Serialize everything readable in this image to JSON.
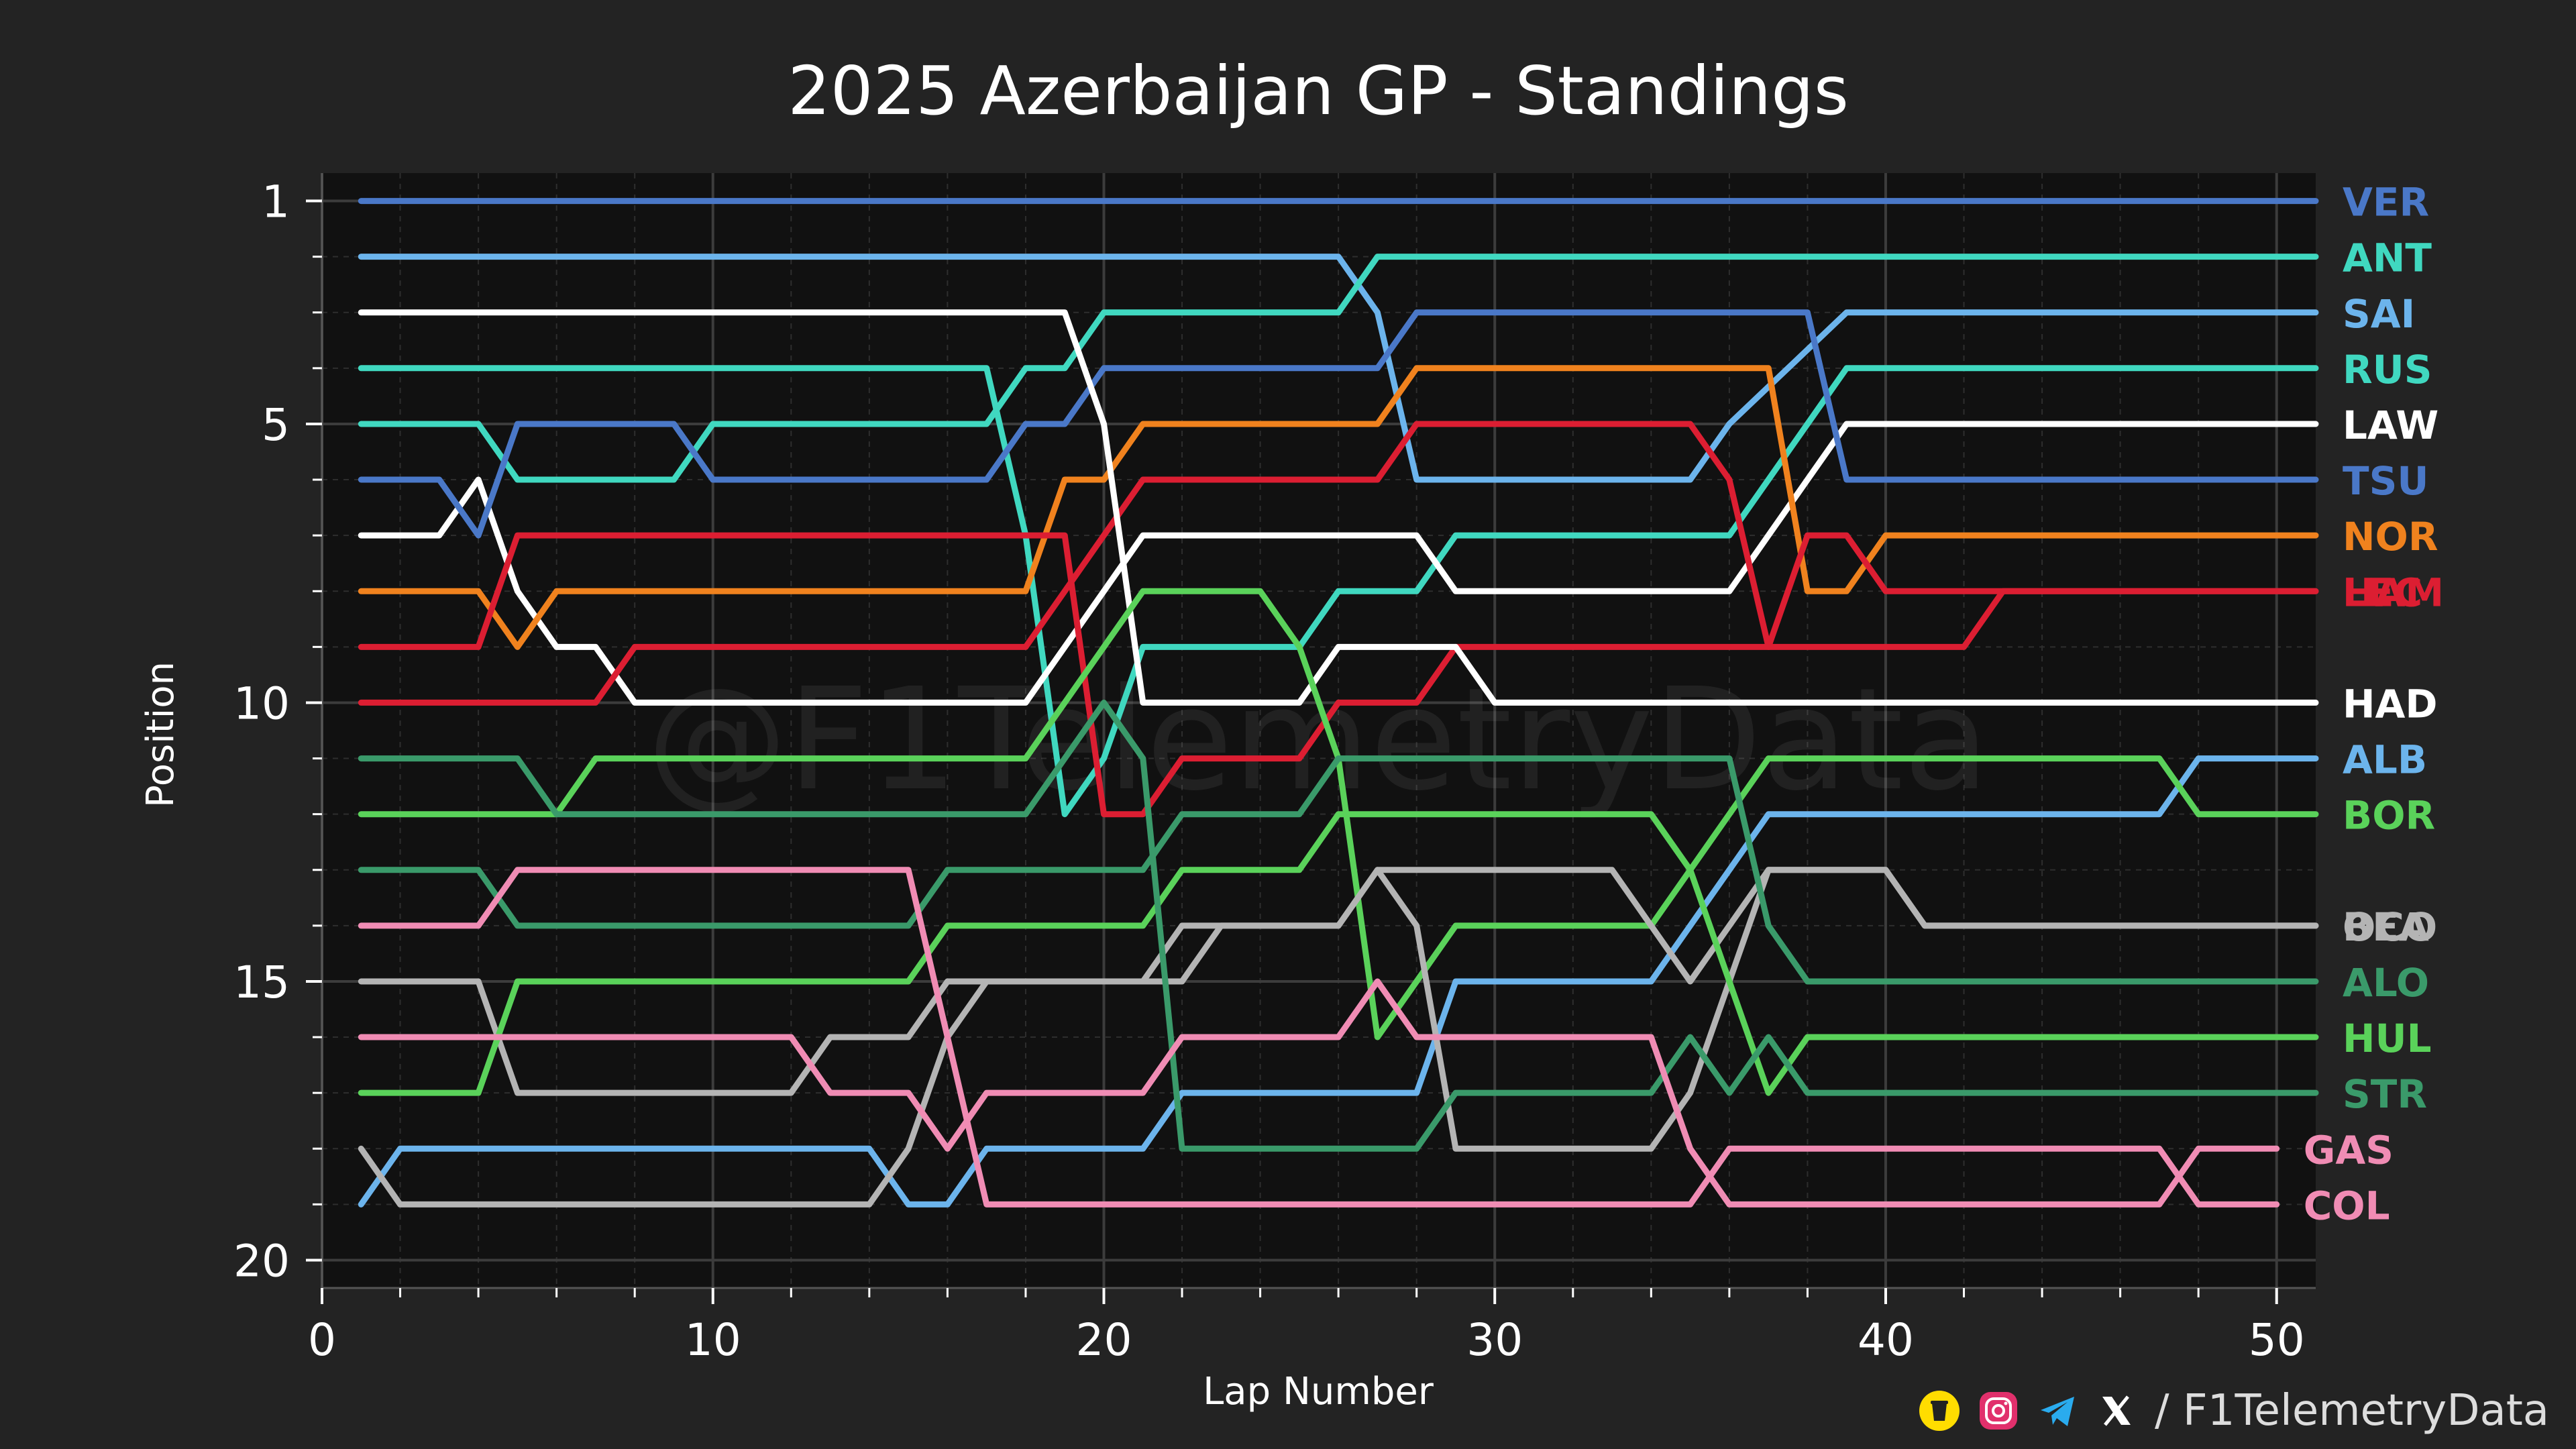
{
  "chart_data": {
    "type": "line",
    "title": "2025 Azerbaijan GP - Standings",
    "xlabel": "Lap Number",
    "ylabel": "Position",
    "xlim": [
      0,
      51
    ],
    "ylim": [
      20.5,
      0.5
    ],
    "xticks": [
      0,
      10,
      20,
      30,
      40,
      50
    ],
    "yticks": [
      1,
      5,
      10,
      15,
      20
    ],
    "grid": true,
    "legend": "right-end labels",
    "watermark": "@F1TelemetryData",
    "series": [
      {
        "name": "VER",
        "color": "#4a78c8",
        "points": [
          [
            1,
            1
          ],
          [
            51,
            1
          ]
        ]
      },
      {
        "name": "RUS",
        "color": "#40d8c0",
        "points": [
          [
            1,
            4
          ],
          [
            17,
            4
          ],
          [
            18,
            7
          ],
          [
            19,
            12
          ],
          [
            20,
            11
          ],
          [
            21,
            9
          ],
          [
            25,
            9
          ],
          [
            26,
            8
          ],
          [
            28,
            8
          ],
          [
            29,
            7
          ],
          [
            36,
            7
          ],
          [
            37,
            6
          ],
          [
            38,
            5
          ],
          [
            39,
            4
          ],
          [
            51,
            4
          ]
        ]
      },
      {
        "name": "SAI",
        "color": "#6cb4ec",
        "points": [
          [
            1,
            2
          ],
          [
            26,
            2
          ],
          [
            27,
            3
          ],
          [
            28,
            6
          ],
          [
            35,
            6
          ],
          [
            36,
            5
          ],
          [
            39,
            3
          ],
          [
            51,
            3
          ]
        ]
      },
      {
        "name": "ANT",
        "color": "#40d8c0",
        "points": [
          [
            1,
            5
          ],
          [
            4,
            5
          ],
          [
            5,
            6
          ],
          [
            9,
            6
          ],
          [
            10,
            5
          ],
          [
            17,
            5
          ],
          [
            18,
            4
          ],
          [
            19,
            4
          ],
          [
            20,
            3
          ],
          [
            26,
            3
          ],
          [
            27,
            2
          ],
          [
            51,
            2
          ]
        ]
      },
      {
        "name": "LAW",
        "color": "#ffffff",
        "points": [
          [
            1,
            7
          ],
          [
            3,
            7
          ],
          [
            4,
            6
          ],
          [
            5,
            8
          ],
          [
            6,
            9
          ],
          [
            7,
            9
          ],
          [
            8,
            10
          ],
          [
            18,
            10
          ],
          [
            19,
            9
          ],
          [
            20,
            8
          ],
          [
            21,
            7
          ],
          [
            27,
            7
          ],
          [
            28,
            7
          ],
          [
            29,
            8
          ],
          [
            36,
            8
          ],
          [
            37,
            7
          ],
          [
            38,
            6
          ],
          [
            39,
            5
          ],
          [
            51,
            5
          ]
        ]
      },
      {
        "name": "TSU",
        "color": "#4a78c8",
        "points": [
          [
            1,
            6
          ],
          [
            3,
            6
          ],
          [
            4,
            7
          ],
          [
            5,
            5
          ],
          [
            9,
            5
          ],
          [
            10,
            6
          ],
          [
            17,
            6
          ],
          [
            18,
            5
          ],
          [
            19,
            5
          ],
          [
            20,
            4
          ],
          [
            27,
            4
          ],
          [
            28,
            3
          ],
          [
            38,
            3
          ],
          [
            39,
            6
          ],
          [
            51,
            6
          ]
        ]
      },
      {
        "name": "NOR",
        "color": "#f0821e",
        "points": [
          [
            1,
            8
          ],
          [
            4,
            8
          ],
          [
            5,
            9
          ],
          [
            6,
            8
          ],
          [
            18,
            8
          ],
          [
            19,
            6
          ],
          [
            20,
            6
          ],
          [
            21,
            5
          ],
          [
            27,
            5
          ],
          [
            28,
            4
          ],
          [
            37,
            4
          ],
          [
            38,
            8
          ],
          [
            39,
            8
          ],
          [
            40,
            7
          ],
          [
            51,
            7
          ]
        ]
      },
      {
        "name": "HAM",
        "color": "#dc1e32",
        "points": [
          [
            1,
            9
          ],
          [
            4,
            9
          ],
          [
            5,
            7
          ],
          [
            19,
            7
          ],
          [
            20,
            12
          ],
          [
            21,
            12
          ],
          [
            22,
            11
          ],
          [
            25,
            11
          ],
          [
            26,
            10
          ],
          [
            28,
            10
          ],
          [
            29,
            9
          ],
          [
            36,
            9
          ],
          [
            37,
            9
          ],
          [
            38,
            7
          ],
          [
            39,
            7
          ],
          [
            40,
            8
          ],
          [
            51,
            8
          ]
        ]
      },
      {
        "name": "LEC",
        "color": "#dc1e32",
        "points": [
          [
            1,
            10
          ],
          [
            7,
            10
          ],
          [
            8,
            9
          ],
          [
            18,
            9
          ],
          [
            19,
            8
          ],
          [
            20,
            7
          ],
          [
            21,
            6
          ],
          [
            27,
            6
          ],
          [
            28,
            5
          ],
          [
            35,
            5
          ],
          [
            36,
            6
          ],
          [
            37,
            9
          ],
          [
            42,
            9
          ],
          [
            43,
            8
          ],
          [
            51,
            8
          ]
        ]
      },
      {
        "name": "HAD",
        "color": "#ffffff",
        "points": [
          [
            1,
            3
          ],
          [
            19,
            3
          ],
          [
            20,
            5
          ],
          [
            21,
            10
          ],
          [
            25,
            10
          ],
          [
            26,
            9
          ],
          [
            29,
            9
          ],
          [
            30,
            10
          ],
          [
            51,
            10
          ]
        ]
      },
      {
        "name": "ALB",
        "color": "#6cb4ec",
        "points": [
          [
            1,
            19
          ],
          [
            2,
            18
          ],
          [
            14,
            18
          ],
          [
            15,
            19
          ],
          [
            16,
            19
          ],
          [
            17,
            18
          ],
          [
            21,
            18
          ],
          [
            22,
            17
          ],
          [
            28,
            17
          ],
          [
            29,
            15
          ],
          [
            34,
            15
          ],
          [
            35,
            14
          ],
          [
            37,
            12
          ],
          [
            47,
            12
          ],
          [
            48,
            11
          ],
          [
            51,
            11
          ]
        ]
      },
      {
        "name": "BOR",
        "color": "#5ad25a",
        "points": [
          [
            1,
            12
          ],
          [
            6,
            12
          ],
          [
            7,
            11
          ],
          [
            18,
            11
          ],
          [
            19,
            10
          ],
          [
            20,
            9
          ],
          [
            21,
            8
          ],
          [
            24,
            8
          ],
          [
            25,
            9
          ],
          [
            26,
            11
          ],
          [
            27,
            16
          ],
          [
            28,
            15
          ],
          [
            29,
            14
          ],
          [
            34,
            14
          ],
          [
            35,
            13
          ],
          [
            36,
            12
          ],
          [
            37,
            11
          ],
          [
            47,
            11
          ],
          [
            48,
            12
          ],
          [
            51,
            12
          ]
        ]
      },
      {
        "name": "BEA",
        "color": "#b4b4b4",
        "points": [
          [
            1,
            15
          ],
          [
            4,
            15
          ],
          [
            5,
            17
          ],
          [
            12,
            17
          ],
          [
            13,
            16
          ],
          [
            15,
            16
          ],
          [
            16,
            15
          ],
          [
            21,
            15
          ],
          [
            22,
            14
          ],
          [
            26,
            14
          ],
          [
            27,
            13
          ],
          [
            28,
            14
          ],
          [
            29,
            18
          ],
          [
            34,
            18
          ],
          [
            35,
            17
          ],
          [
            36,
            15
          ],
          [
            37,
            13
          ],
          [
            40,
            13
          ],
          [
            41,
            14
          ],
          [
            51,
            14
          ]
        ]
      },
      {
        "name": "OCO",
        "color": "#b4b4b4",
        "points": [
          [
            1,
            18
          ],
          [
            2,
            19
          ],
          [
            14,
            19
          ],
          [
            15,
            18
          ],
          [
            16,
            16
          ],
          [
            17,
            15
          ],
          [
            22,
            15
          ],
          [
            23,
            14
          ],
          [
            26,
            14
          ],
          [
            27,
            13
          ],
          [
            33,
            13
          ],
          [
            34,
            14
          ],
          [
            35,
            15
          ],
          [
            36,
            14
          ],
          [
            37,
            13
          ],
          [
            40,
            13
          ],
          [
            41,
            14
          ],
          [
            51,
            14
          ]
        ]
      },
      {
        "name": "ALO",
        "color": "#3a9a6a",
        "points": [
          [
            1,
            13
          ],
          [
            4,
            13
          ],
          [
            5,
            14
          ],
          [
            15,
            14
          ],
          [
            16,
            13
          ],
          [
            21,
            13
          ],
          [
            22,
            12
          ],
          [
            25,
            12
          ],
          [
            26,
            11
          ],
          [
            36,
            11
          ],
          [
            37,
            14
          ],
          [
            38,
            15
          ],
          [
            51,
            15
          ]
        ]
      },
      {
        "name": "HUL",
        "color": "#5ad25a",
        "points": [
          [
            1,
            17
          ],
          [
            4,
            17
          ],
          [
            5,
            15
          ],
          [
            15,
            15
          ],
          [
            16,
            14
          ],
          [
            21,
            14
          ],
          [
            22,
            13
          ],
          [
            25,
            13
          ],
          [
            26,
            12
          ],
          [
            34,
            12
          ],
          [
            35,
            13
          ],
          [
            36,
            15
          ],
          [
            37,
            17
          ],
          [
            38,
            16
          ],
          [
            51,
            16
          ]
        ]
      },
      {
        "name": "STR",
        "color": "#3a9a6a",
        "points": [
          [
            1,
            11
          ],
          [
            5,
            11
          ],
          [
            6,
            12
          ],
          [
            17,
            12
          ],
          [
            18,
            12
          ],
          [
            19,
            11
          ],
          [
            20,
            10
          ],
          [
            21,
            11
          ],
          [
            22,
            18
          ],
          [
            28,
            18
          ],
          [
            29,
            17
          ],
          [
            34,
            17
          ],
          [
            35,
            16
          ],
          [
            36,
            17
          ],
          [
            37,
            16
          ],
          [
            38,
            17
          ],
          [
            51,
            17
          ]
        ]
      },
      {
        "name": "GAS",
        "color": "#f08cb4",
        "points": [
          [
            1,
            16
          ],
          [
            12,
            16
          ],
          [
            13,
            17
          ],
          [
            15,
            17
          ],
          [
            16,
            18
          ],
          [
            17,
            17
          ],
          [
            21,
            17
          ],
          [
            22,
            16
          ],
          [
            26,
            16
          ],
          [
            27,
            15
          ],
          [
            28,
            16
          ],
          [
            34,
            16
          ],
          [
            35,
            18
          ],
          [
            36,
            19
          ],
          [
            47,
            19
          ],
          [
            48,
            18
          ],
          [
            50,
            18
          ]
        ]
      },
      {
        "name": "COL",
        "color": "#f08cb4",
        "points": [
          [
            1,
            14
          ],
          [
            4,
            14
          ],
          [
            5,
            13
          ],
          [
            15,
            13
          ],
          [
            16,
            16
          ],
          [
            17,
            19
          ],
          [
            35,
            19
          ],
          [
            36,
            18
          ],
          [
            47,
            18
          ],
          [
            48,
            19
          ],
          [
            50,
            19
          ]
        ]
      }
    ]
  },
  "footer": {
    "handle": "/ F1TelemetryData",
    "icons": [
      "bmc-icon",
      "instagram-icon",
      "telegram-icon",
      "x-icon"
    ],
    "colors": {
      "bmc": "#ffdd00",
      "instagram": "#e1306c",
      "telegram": "#2aabee",
      "x": "#ffffff"
    }
  }
}
